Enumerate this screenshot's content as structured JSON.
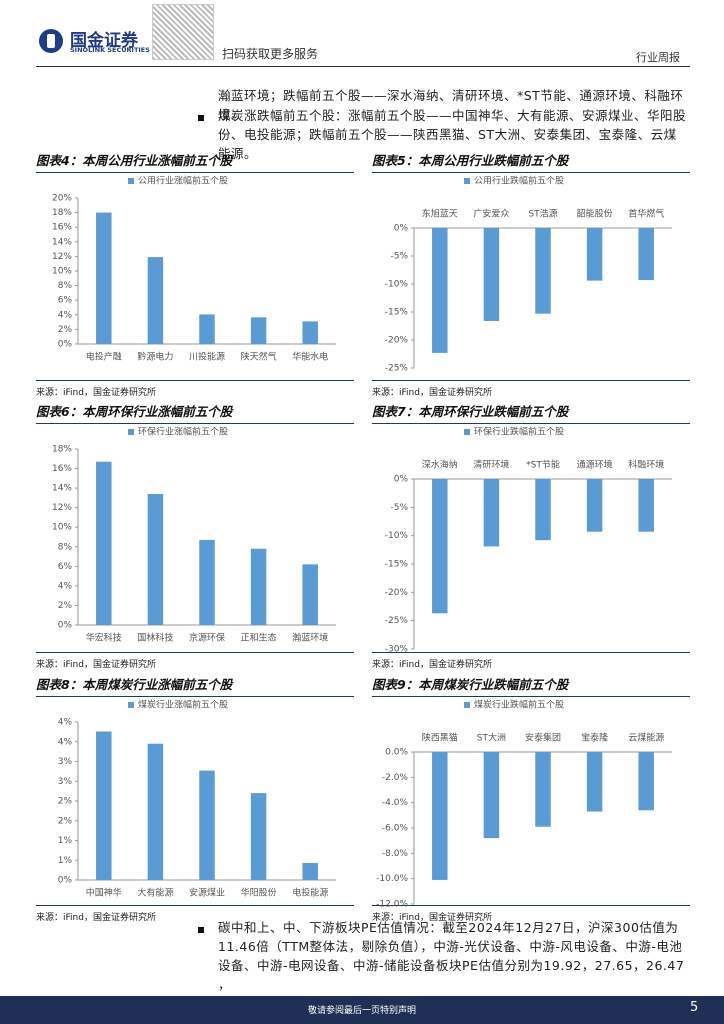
{
  "header": {
    "brand": "国金证券",
    "brand_en": "SINOLINK SECURITIES",
    "qr_caption": "扫码获取更多服务",
    "report_type": "行业周报"
  },
  "body": {
    "line1": "瀚蓝环境；跌幅前五个股——深水海纳、清研环境、*ST节能、通源环境、科融环境。",
    "bullet1": "煤炭涨跌幅前五个股：涨幅前五个股——中国神华、大有能源、安源煤业、华阳股份、电投能源；跌幅前五个股——陕西黑猫、ST大洲、安泰集团、宝泰隆、云煤能源。",
    "bullet2": "碳中和上、中、下游板块PE估值情况：截至2024年12月27日，沪深300估值为11.46倍（TTM整体法，剔除负值），中游-光伏设备、中游-风电设备、中游-电池设备、中游-电网设备、中游-储能设备板块PE估值分别为19.92，27.65，26.47 ，"
  },
  "footer": {
    "disclaimer": "敬请参阅最后一页特别声明",
    "page": "5"
  },
  "chart_data": [
    {
      "type": "bar",
      "title": "图表4：本周公用行业涨幅前五个股",
      "source": "来源：iFind，国金证券研究所",
      "categories": [
        "电投产融",
        "黔源电力",
        "川投能源",
        "陕天然气",
        "华能水电"
      ],
      "series": [
        {
          "name": "公用行业涨幅前五个股",
          "color": "#5b9bd5",
          "values": [
            18.0,
            11.9,
            4.05,
            3.65,
            3.1
          ]
        }
      ],
      "ylim": [
        0,
        20
      ],
      "yticks": [
        {
          "value": 0,
          "label": "0%"
        },
        {
          "value": 2,
          "label": "2%"
        },
        {
          "value": 4,
          "label": "4%"
        },
        {
          "value": 6,
          "label": "6%"
        },
        {
          "value": 8,
          "label": "8%"
        },
        {
          "value": 10,
          "label": "10%"
        },
        {
          "value": 12,
          "label": "12%"
        },
        {
          "value": 14,
          "label": "14%"
        },
        {
          "value": 16,
          "label": "16%"
        },
        {
          "value": 18,
          "label": "18%"
        },
        {
          "value": 20,
          "label": "20%"
        }
      ],
      "legend": "top-left"
    },
    {
      "type": "bar",
      "title": "图表5：本周公用行业跌幅前五个股",
      "source": "来源：iFind，国金证券研究所",
      "categories": [
        "东旭蓝天",
        "广安爱众",
        "ST浩源",
        "韶能股份",
        "首华燃气"
      ],
      "series": [
        {
          "name": "公用行业跌幅前五个股",
          "color": "#5b9bd5",
          "values": [
            -22.3,
            -16.6,
            -15.3,
            -9.4,
            -9.3
          ]
        }
      ],
      "ylim": [
        -25,
        0
      ],
      "yticks": [
        {
          "value": 0,
          "label": "0%"
        },
        {
          "value": -5,
          "label": "-5%"
        },
        {
          "value": -10,
          "label": "-10%"
        },
        {
          "value": -15,
          "label": "-15%"
        },
        {
          "value": -20,
          "label": "-20%"
        },
        {
          "value": -25,
          "label": "-25%"
        }
      ],
      "legend": "top-left"
    },
    {
      "type": "bar",
      "title": "图表6：本周环保行业涨幅前五个股",
      "source": "来源：iFind，国金证券研究所",
      "categories": [
        "华宏科技",
        "国林科技",
        "京源环保",
        "正和生态",
        "瀚蓝环境"
      ],
      "series": [
        {
          "name": "环保行业涨幅前五个股",
          "color": "#5b9bd5",
          "values": [
            16.7,
            13.4,
            8.7,
            7.8,
            6.2
          ]
        }
      ],
      "ylim": [
        0,
        18
      ],
      "yticks": [
        {
          "value": 0,
          "label": "0%"
        },
        {
          "value": 2,
          "label": "2%"
        },
        {
          "value": 4,
          "label": "4%"
        },
        {
          "value": 6,
          "label": "6%"
        },
        {
          "value": 8,
          "label": "8%"
        },
        {
          "value": 10,
          "label": "10%"
        },
        {
          "value": 12,
          "label": "12%"
        },
        {
          "value": 14,
          "label": "14%"
        },
        {
          "value": 16,
          "label": "16%"
        },
        {
          "value": 18,
          "label": "18%"
        }
      ],
      "legend": "top-left"
    },
    {
      "type": "bar",
      "title": "图表7：本周环保行业跌幅前五个股",
      "source": "来源：iFind，国金证券研究所",
      "categories": [
        "深水海纳",
        "清研环境",
        "*ST节能",
        "通源环境",
        "科融环境"
      ],
      "series": [
        {
          "name": "环保行业跌幅前五个股",
          "color": "#5b9bd5",
          "values": [
            -23.7,
            -11.9,
            -10.8,
            -9.3,
            -9.3
          ]
        }
      ],
      "ylim": [
        -30,
        0
      ],
      "yticks": [
        {
          "value": 0,
          "label": "0%"
        },
        {
          "value": -5,
          "label": "-5%"
        },
        {
          "value": -10,
          "label": "-10%"
        },
        {
          "value": -15,
          "label": "-15%"
        },
        {
          "value": -20,
          "label": "-20%"
        },
        {
          "value": -25,
          "label": "-25%"
        },
        {
          "value": -30,
          "label": "-30%"
        }
      ],
      "legend": "top-left"
    },
    {
      "type": "bar",
      "title": "图表8：本周煤炭行业涨幅前五个股",
      "source": "来源：iFind，国金证券研究所",
      "categories": [
        "中国神华",
        "大有能源",
        "安源煤业",
        "华阳股份",
        "电投能源"
      ],
      "series": [
        {
          "name": "煤炭行业涨幅前五个股",
          "color": "#5b9bd5",
          "values": [
            3.76,
            3.45,
            2.77,
            2.2,
            0.43
          ]
        }
      ],
      "ylim": [
        0,
        4
      ],
      "yticks": [
        {
          "value": 0,
          "label": "0%"
        },
        {
          "value": 0.5,
          "label": "1%"
        },
        {
          "value": 1,
          "label": "1%"
        },
        {
          "value": 1.5,
          "label": "2%"
        },
        {
          "value": 2,
          "label": "2%"
        },
        {
          "value": 2.5,
          "label": "3%"
        },
        {
          "value": 3,
          "label": "3%"
        },
        {
          "value": 3.5,
          "label": "4%"
        },
        {
          "value": 4,
          "label": "4%"
        }
      ],
      "legend": "top-left"
    },
    {
      "type": "bar",
      "title": "图表9：本周煤炭行业跌幅前五个股",
      "source": "来源：iFind，国金证券研究所",
      "categories": [
        "陕西黑猫",
        "ST大洲",
        "安泰集团",
        "宝泰隆",
        "云煤能源"
      ],
      "series": [
        {
          "name": "煤炭行业跌幅前五个股",
          "color": "#5b9bd5",
          "values": [
            -10.1,
            -6.8,
            -5.9,
            -4.7,
            -4.6
          ]
        }
      ],
      "ylim": [
        -12,
        0
      ],
      "yticks": [
        {
          "value": 0,
          "label": "0.0%"
        },
        {
          "value": -2,
          "label": "-2.0%"
        },
        {
          "value": -4,
          "label": "-4.0%"
        },
        {
          "value": -6,
          "label": "-6.0%"
        },
        {
          "value": -8,
          "label": "-8.0%"
        },
        {
          "value": -10,
          "label": "-10.0%"
        },
        {
          "value": -12,
          "label": "-12.0%"
        }
      ],
      "legend": "top-left"
    }
  ]
}
